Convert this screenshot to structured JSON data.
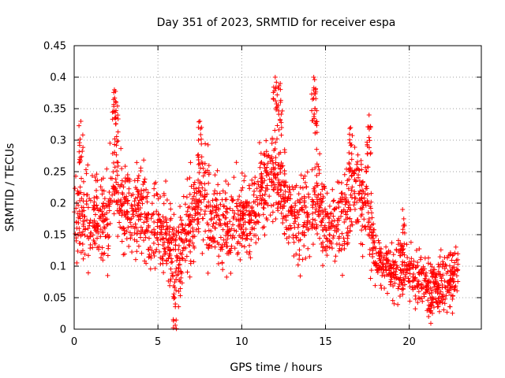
{
  "chart_data": {
    "type": "scatter",
    "title": "Day 351 of 2023, SRMTID for receiver espa",
    "xlabel": "GPS time / hours",
    "ylabel": "SRMTID / TECUs",
    "xlim": [
      0,
      24.3
    ],
    "ylim": [
      0,
      0.45
    ],
    "xticks": [
      0,
      5,
      10,
      15,
      20
    ],
    "xtick_labels": [
      "0",
      "5",
      "10",
      "15",
      "20"
    ],
    "yticks": [
      0,
      0.05,
      0.1,
      0.15,
      0.2,
      0.25,
      0.3,
      0.35,
      0.4,
      0.45
    ],
    "ytick_labels": [
      "0",
      "0.05",
      "0.1",
      "0.15",
      "0.2",
      "0.25",
      "0.3",
      "0.35",
      "0.4",
      "0.45"
    ],
    "grid": true,
    "marker": "plus",
    "marker_color": "#ff0000",
    "series": [
      {
        "name": "espa",
        "description": "dense scatter of SRMTID samples; trend points (hours, TECU) read from the figure",
        "trend": [
          [
            0.0,
            0.19
          ],
          [
            0.5,
            0.18
          ],
          [
            1.0,
            0.18
          ],
          [
            1.5,
            0.17
          ],
          [
            2.0,
            0.17
          ],
          [
            2.4,
            0.25
          ],
          [
            3.0,
            0.19
          ],
          [
            3.5,
            0.18
          ],
          [
            4.0,
            0.19
          ],
          [
            4.5,
            0.16
          ],
          [
            5.0,
            0.18
          ],
          [
            5.5,
            0.15
          ],
          [
            6.0,
            0.11
          ],
          [
            6.5,
            0.14
          ],
          [
            7.0,
            0.17
          ],
          [
            7.5,
            0.22
          ],
          [
            8.0,
            0.19
          ],
          [
            8.5,
            0.17
          ],
          [
            9.0,
            0.15
          ],
          [
            9.5,
            0.17
          ],
          [
            10.0,
            0.18
          ],
          [
            10.5,
            0.17
          ],
          [
            11.0,
            0.21
          ],
          [
            11.5,
            0.23
          ],
          [
            12.0,
            0.25
          ],
          [
            12.5,
            0.22
          ],
          [
            13.0,
            0.18
          ],
          [
            13.5,
            0.17
          ],
          [
            14.0,
            0.18
          ],
          [
            14.5,
            0.21
          ],
          [
            15.0,
            0.17
          ],
          [
            15.5,
            0.16
          ],
          [
            16.0,
            0.18
          ],
          [
            16.5,
            0.2
          ],
          [
            17.0,
            0.22
          ],
          [
            17.5,
            0.2
          ],
          [
            18.0,
            0.12
          ],
          [
            18.5,
            0.1
          ],
          [
            19.0,
            0.09
          ],
          [
            19.5,
            0.1
          ],
          [
            20.0,
            0.09
          ],
          [
            20.5,
            0.08
          ],
          [
            21.0,
            0.07
          ],
          [
            21.5,
            0.06
          ],
          [
            22.0,
            0.07
          ],
          [
            22.5,
            0.08
          ],
          [
            22.9,
            0.09
          ]
        ],
        "spikes": [
          [
            0.4,
            0.33
          ],
          [
            2.4,
            0.38
          ],
          [
            2.5,
            0.36
          ],
          [
            7.5,
            0.33
          ],
          [
            12.0,
            0.4
          ],
          [
            12.3,
            0.39
          ],
          [
            14.3,
            0.4
          ],
          [
            14.4,
            0.38
          ],
          [
            16.5,
            0.32
          ],
          [
            17.6,
            0.34
          ],
          [
            19.6,
            0.19
          ],
          [
            6.0,
            0.05
          ],
          [
            21.2,
            0.03
          ]
        ]
      }
    ]
  }
}
